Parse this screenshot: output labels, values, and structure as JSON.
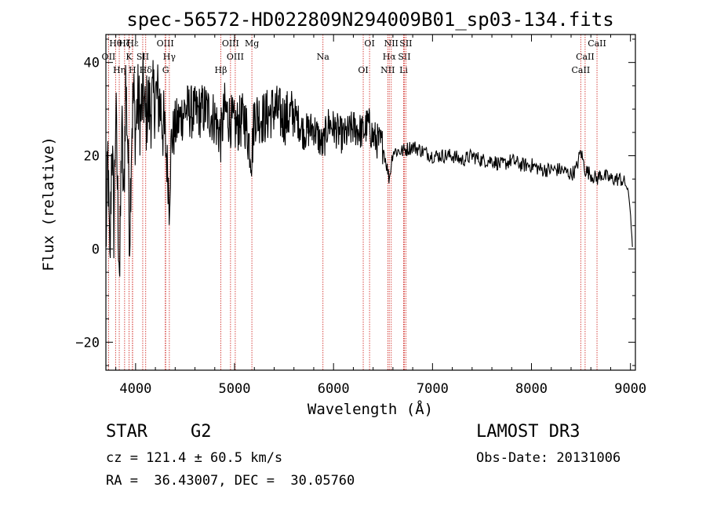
{
  "chart_data": {
    "type": "line",
    "title": "spec-56572-HD022809N294009B01_sp03-134.fits",
    "xlabel": "Wavelength (Å)",
    "ylabel": "Flux (relative)",
    "xlim": [
      3700,
      9050
    ],
    "ylim": [
      -26,
      46
    ],
    "xticks": [
      4000,
      5000,
      6000,
      7000,
      8000,
      9000
    ],
    "yticks": [
      -20,
      0,
      20,
      40
    ],
    "series": [
      {
        "name": "flux",
        "x": [
          3700,
          3720,
          3740,
          3760,
          3780,
          3800,
          3820,
          3840,
          3860,
          3880,
          3900,
          3920,
          3940,
          3960,
          3980,
          4000,
          4020,
          4050,
          4080,
          4100,
          4120,
          4150,
          4200,
          4250,
          4300,
          4330,
          4340,
          4360,
          4400,
          4450,
          4500,
          4600,
          4700,
          4800,
          4861,
          4900,
          5000,
          5100,
          5175,
          5200,
          5300,
          5400,
          5500,
          5600,
          5700,
          5800,
          5890,
          5950,
          6000,
          6100,
          6200,
          6300,
          6350,
          6400,
          6450,
          6500,
          6563,
          6600,
          6700,
          6800,
          6900,
          7000,
          7100,
          7200,
          7300,
          7400,
          7500,
          7600,
          7700,
          7800,
          7900,
          8000,
          8100,
          8200,
          8300,
          8400,
          8450,
          8498,
          8542,
          8600,
          8662,
          8700,
          8800,
          8900,
          8950,
          8980,
          9000,
          9020
        ],
        "y": [
          0,
          20,
          -5,
          25,
          5,
          30,
          10,
          -6,
          28,
          8,
          36,
          24,
          3,
          26,
          33,
          25,
          32,
          28,
          34,
          27,
          31,
          30,
          33,
          31,
          23,
          15,
          10,
          23,
          26,
          28,
          30,
          29,
          30,
          28,
          24,
          30,
          26,
          28,
          20,
          29,
          28,
          30,
          28,
          29,
          25,
          26,
          22,
          27,
          26,
          24,
          26,
          25,
          27,
          24,
          23,
          22,
          15,
          21,
          21,
          22,
          21,
          20,
          20,
          20,
          19,
          20,
          19,
          19,
          18,
          19,
          18,
          18,
          17,
          17,
          17,
          16,
          17,
          21,
          17,
          16,
          15,
          16,
          15,
          15,
          14,
          12,
          8,
          0
        ]
      }
    ],
    "line_color": "#000000",
    "marker_color": "#d2322d",
    "lines": [
      {
        "label": "Hθ",
        "wl": 3798
      },
      {
        "label": "OII",
        "wl": 3727
      },
      {
        "label": "Hη",
        "wl": 3835
      },
      {
        "label": "Hζ",
        "wl": 3889
      },
      {
        "label": "K",
        "wl": 3934
      },
      {
        "label": "H",
        "wl": 3968
      },
      {
        "label": "Hε",
        "wl": 3970
      },
      {
        "label": "SII",
        "wl": 4072
      },
      {
        "label": "Hδ",
        "wl": 4102
      },
      {
        "label": "OIII",
        "wl": 4300
      },
      {
        "label": "Hγ",
        "wl": 4341
      },
      {
        "label": "G",
        "wl": 4304
      },
      {
        "label": "OIII",
        "wl": 4959
      },
      {
        "label": "OIII",
        "wl": 5007
      },
      {
        "label": "Hβ",
        "wl": 4861
      },
      {
        "label": "Mg",
        "wl": 5175
      },
      {
        "label": "Na",
        "wl": 5893
      },
      {
        "label": "OI",
        "wl": 6300
      },
      {
        "label": "OI",
        "wl": 6364
      },
      {
        "label": "Hα",
        "wl": 6563
      },
      {
        "label": "NII",
        "wl": 6548
      },
      {
        "label": "NII",
        "wl": 6583
      },
      {
        "label": "SII",
        "wl": 6716
      },
      {
        "label": "Li",
        "wl": 6708
      },
      {
        "label": "SII",
        "wl": 6731
      },
      {
        "label": "CaII",
        "wl": 8542
      },
      {
        "label": "CaII",
        "wl": 8498
      },
      {
        "label": "CaII",
        "wl": 8662
      }
    ]
  },
  "info": {
    "object_class": "STAR",
    "subclass": "G2",
    "cz": "cz = 121.4 ± 60.5 km/s",
    "coords": "RA =  36.43007, DEC =  30.05760",
    "survey": "LAMOST DR3",
    "obs_date": "Obs-Date: 20131006"
  }
}
